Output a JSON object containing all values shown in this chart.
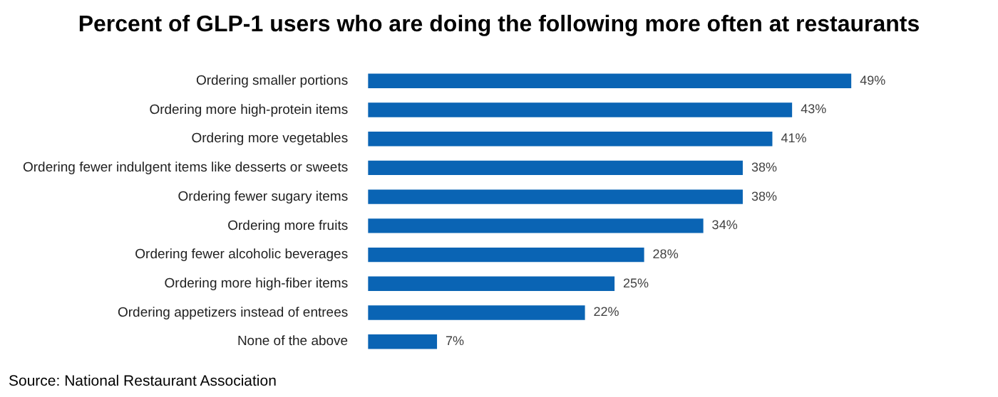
{
  "chart_data": {
    "type": "bar",
    "orientation": "horizontal",
    "title": "Percent of GLP-1 users who are doing the following more often at restaurants",
    "categories": [
      "Ordering smaller portions",
      "Ordering more high-protein items",
      "Ordering more vegetables",
      "Ordering fewer indulgent items like desserts or sweets",
      "Ordering fewer sugary items",
      "Ordering more fruits",
      "Ordering fewer alcoholic beverages",
      "Ordering more high-fiber items",
      "Ordering appetizers instead of entrees",
      "None of the above"
    ],
    "values": [
      49,
      43,
      41,
      38,
      38,
      34,
      28,
      25,
      22,
      7
    ],
    "value_labels": [
      "49%",
      "43%",
      "41%",
      "38%",
      "38%",
      "34%",
      "28%",
      "25%",
      "22%",
      "7%"
    ],
    "color": "#0a64b4",
    "tick_labels": "y",
    "legend": false,
    "annotations": [
      "Source: National Restaurant Association"
    ]
  }
}
